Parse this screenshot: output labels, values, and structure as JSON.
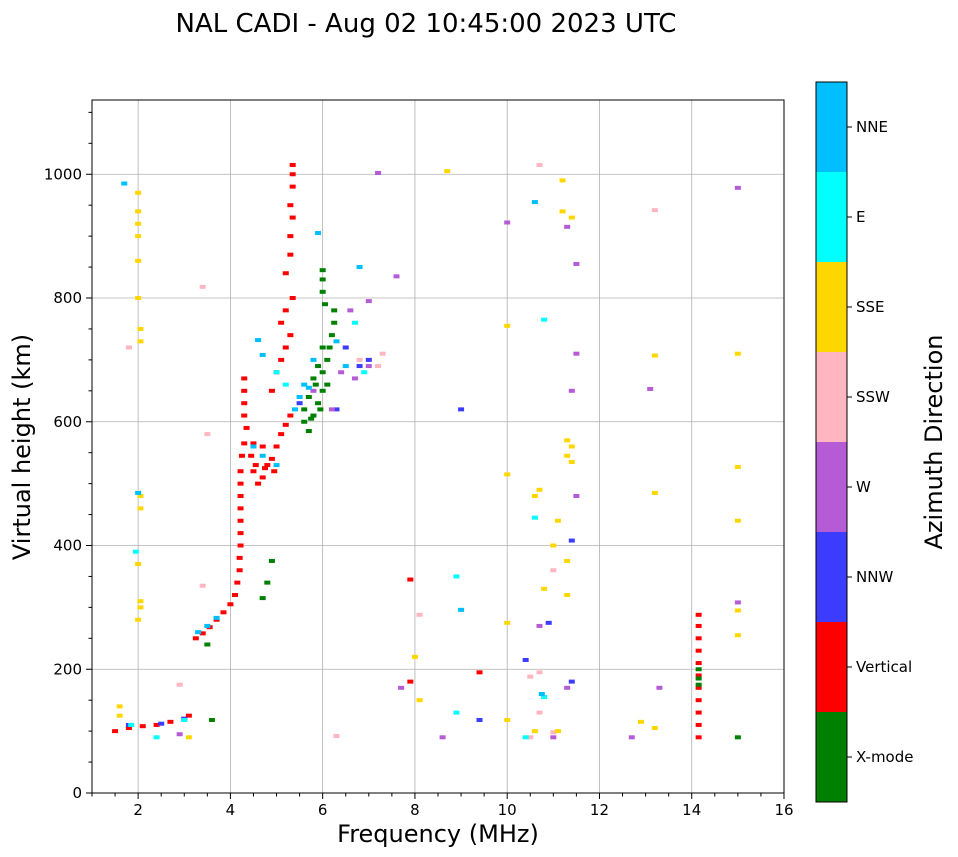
{
  "chart_data": {
    "type": "scatter",
    "title": "NAL CADI - Aug 02 10:45:00 2023 UTC",
    "xlabel": "Frequency (MHz)",
    "ylabel": "Virtual height (km)",
    "xlim": [
      1,
      16
    ],
    "ylim": [
      0,
      1120
    ],
    "xticks": [
      "2",
      "4",
      "6",
      "8",
      "10",
      "12",
      "14",
      "16"
    ],
    "yticks": [
      "0",
      "200",
      "400",
      "600",
      "800",
      "1000"
    ],
    "grid": true,
    "colorbar": {
      "label": "Azimuth Direction",
      "categories": [
        {
          "name": "X-mode",
          "color": "#008000"
        },
        {
          "name": "Vertical",
          "color": "#ff0000"
        },
        {
          "name": "NNW",
          "color": "#3c3cff"
        },
        {
          "name": "W",
          "color": "#b55bd6"
        },
        {
          "name": "SSW",
          "color": "#ffb6c1"
        },
        {
          "name": "SSE",
          "color": "#ffd700"
        },
        {
          "name": "E",
          "color": "#00ffff"
        },
        {
          "name": "NNE",
          "color": "#00bfff"
        }
      ]
    },
    "series": [
      {
        "name": "Vertical",
        "color": "#ff0000",
        "points": [
          [
            1.5,
            100
          ],
          [
            1.8,
            105
          ],
          [
            2.1,
            108
          ],
          [
            2.4,
            110
          ],
          [
            2.7,
            115
          ],
          [
            3.0,
            120
          ],
          [
            3.1,
            125
          ],
          [
            3.25,
            250
          ],
          [
            3.4,
            258
          ],
          [
            3.55,
            268
          ],
          [
            3.7,
            280
          ],
          [
            3.85,
            292
          ],
          [
            4.0,
            305
          ],
          [
            4.1,
            320
          ],
          [
            4.15,
            340
          ],
          [
            4.2,
            360
          ],
          [
            4.2,
            380
          ],
          [
            4.22,
            400
          ],
          [
            4.22,
            420
          ],
          [
            4.22,
            440
          ],
          [
            4.22,
            460
          ],
          [
            4.22,
            480
          ],
          [
            4.22,
            500
          ],
          [
            4.22,
            520
          ],
          [
            4.25,
            545
          ],
          [
            4.3,
            565
          ],
          [
            4.35,
            590
          ],
          [
            4.3,
            610
          ],
          [
            4.3,
            630
          ],
          [
            4.3,
            650
          ],
          [
            4.3,
            670
          ],
          [
            4.5,
            520
          ],
          [
            4.6,
            500
          ],
          [
            4.7,
            510
          ],
          [
            4.8,
            530
          ],
          [
            4.9,
            540
          ],
          [
            5.0,
            560
          ],
          [
            5.1,
            580
          ],
          [
            5.2,
            595
          ],
          [
            5.3,
            610
          ],
          [
            4.45,
            545
          ],
          [
            4.55,
            530
          ],
          [
            4.75,
            525
          ],
          [
            4.95,
            520
          ],
          [
            4.5,
            565
          ],
          [
            4.7,
            560
          ],
          [
            4.9,
            650
          ],
          [
            5.0,
            680
          ],
          [
            5.1,
            700
          ],
          [
            5.2,
            720
          ],
          [
            5.3,
            740
          ],
          [
            5.1,
            760
          ],
          [
            5.2,
            780
          ],
          [
            5.35,
            800
          ],
          [
            5.2,
            840
          ],
          [
            5.3,
            870
          ],
          [
            5.3,
            900
          ],
          [
            5.35,
            930
          ],
          [
            5.3,
            950
          ],
          [
            5.35,
            980
          ],
          [
            5.35,
            1000
          ],
          [
            5.35,
            1015
          ],
          [
            7.9,
            345
          ],
          [
            7.9,
            180
          ],
          [
            9.4,
            195
          ],
          [
            14.15,
            90
          ],
          [
            14.15,
            110
          ],
          [
            14.15,
            130
          ],
          [
            14.15,
            150
          ],
          [
            14.15,
            170
          ],
          [
            14.15,
            190
          ],
          [
            14.15,
            210
          ],
          [
            14.15,
            230
          ],
          [
            14.15,
            250
          ],
          [
            14.15,
            270
          ],
          [
            14.15,
            288
          ]
        ]
      },
      {
        "name": "X-mode",
        "color": "#008000",
        "points": [
          [
            5.6,
            600
          ],
          [
            5.7,
            585
          ],
          [
            5.8,
            610
          ],
          [
            5.9,
            630
          ],
          [
            6.0,
            650
          ],
          [
            5.7,
            640
          ],
          [
            5.85,
            660
          ],
          [
            6.0,
            680
          ],
          [
            6.1,
            700
          ],
          [
            6.15,
            720
          ],
          [
            6.2,
            740
          ],
          [
            6.25,
            760
          ],
          [
            6.25,
            780
          ],
          [
            6.0,
            720
          ],
          [
            5.9,
            690
          ],
          [
            6.05,
            790
          ],
          [
            6.0,
            810
          ],
          [
            6.0,
            830
          ],
          [
            6.0,
            845
          ],
          [
            5.6,
            620
          ],
          [
            5.75,
            605
          ],
          [
            5.95,
            620
          ],
          [
            6.1,
            660
          ],
          [
            5.8,
            670
          ],
          [
            4.9,
            375
          ],
          [
            4.7,
            315
          ],
          [
            4.8,
            340
          ],
          [
            3.5,
            240
          ],
          [
            3.6,
            118
          ],
          [
            14.15,
            185
          ],
          [
            14.15,
            200
          ],
          [
            14.15,
            175
          ],
          [
            15.0,
            90
          ]
        ]
      },
      {
        "name": "NNW",
        "color": "#3c3cff",
        "points": [
          [
            1.8,
            110
          ],
          [
            2.5,
            112
          ],
          [
            3.0,
            120
          ],
          [
            5.5,
            630
          ],
          [
            6.3,
            620
          ],
          [
            6.5,
            720
          ],
          [
            6.8,
            690
          ],
          [
            9.0,
            620
          ],
          [
            9.4,
            118
          ],
          [
            10.4,
            215
          ],
          [
            10.9,
            275
          ],
          [
            11.4,
            408
          ],
          [
            11.4,
            180
          ],
          [
            7.0,
            700
          ]
        ]
      },
      {
        "name": "W",
        "color": "#b55bd6",
        "points": [
          [
            2.9,
            95
          ],
          [
            5.8,
            650
          ],
          [
            6.2,
            620
          ],
          [
            6.4,
            680
          ],
          [
            6.7,
            670
          ],
          [
            7.0,
            690
          ],
          [
            6.6,
            780
          ],
          [
            7.0,
            795
          ],
          [
            7.2,
            1002
          ],
          [
            7.6,
            835
          ],
          [
            10.0,
            922
          ],
          [
            11.3,
            915
          ],
          [
            11.5,
            855
          ],
          [
            11.5,
            710
          ],
          [
            11.4,
            650
          ],
          [
            11.5,
            480
          ],
          [
            10.7,
            270
          ],
          [
            11.3,
            170
          ],
          [
            11.0,
            90
          ],
          [
            12.7,
            90
          ],
          [
            13.1,
            653
          ],
          [
            13.3,
            170
          ],
          [
            15.0,
            978
          ],
          [
            15.0,
            308
          ],
          [
            8.6,
            90
          ],
          [
            7.7,
            170
          ]
        ]
      },
      {
        "name": "SSW",
        "color": "#ffb6c1",
        "points": [
          [
            1.8,
            720
          ],
          [
            3.4,
            818
          ],
          [
            3.5,
            580
          ],
          [
            3.4,
            335
          ],
          [
            2.9,
            175
          ],
          [
            6.3,
            92
          ],
          [
            7.2,
            690
          ],
          [
            7.3,
            710
          ],
          [
            6.8,
            700
          ],
          [
            8.1,
            288
          ],
          [
            10.5,
            188
          ],
          [
            10.7,
            195
          ],
          [
            11.0,
            360
          ],
          [
            10.5,
            90
          ],
          [
            10.7,
            130
          ],
          [
            10.7,
            1015
          ],
          [
            13.2,
            942
          ],
          [
            11.0,
            98
          ]
        ]
      },
      {
        "name": "SSE",
        "color": "#ffd700",
        "points": [
          [
            2.0,
            970
          ],
          [
            2.0,
            940
          ],
          [
            2.0,
            920
          ],
          [
            2.0,
            900
          ],
          [
            2.0,
            860
          ],
          [
            2.0,
            800
          ],
          [
            2.05,
            750
          ],
          [
            2.05,
            730
          ],
          [
            2.05,
            480
          ],
          [
            2.05,
            460
          ],
          [
            2.0,
            370
          ],
          [
            2.05,
            310
          ],
          [
            2.05,
            300
          ],
          [
            2.0,
            280
          ],
          [
            1.6,
            140
          ],
          [
            1.6,
            125
          ],
          [
            3.1,
            90
          ],
          [
            8.7,
            1005
          ],
          [
            8.0,
            220
          ],
          [
            8.1,
            150
          ],
          [
            10.0,
            755
          ],
          [
            10.0,
            515
          ],
          [
            10.0,
            275
          ],
          [
            10.0,
            118
          ],
          [
            10.7,
            490
          ],
          [
            10.6,
            480
          ],
          [
            10.8,
            330
          ],
          [
            11.2,
            990
          ],
          [
            11.2,
            940
          ],
          [
            11.4,
            930
          ],
          [
            11.3,
            570
          ],
          [
            11.4,
            560
          ],
          [
            11.3,
            545
          ],
          [
            11.4,
            535
          ],
          [
            11.1,
            440
          ],
          [
            11.0,
            400
          ],
          [
            11.3,
            375
          ],
          [
            11.3,
            320
          ],
          [
            10.6,
            100
          ],
          [
            11.1,
            100
          ],
          [
            12.9,
            115
          ],
          [
            13.2,
            105
          ],
          [
            13.2,
            707
          ],
          [
            13.2,
            485
          ],
          [
            15.0,
            710
          ],
          [
            15.0,
            527
          ],
          [
            15.0,
            440
          ],
          [
            15.0,
            295
          ],
          [
            15.0,
            255
          ]
        ]
      },
      {
        "name": "E",
        "color": "#00ffff",
        "points": [
          [
            1.95,
            390
          ],
          [
            1.85,
            110
          ],
          [
            2.4,
            90
          ],
          [
            5.0,
            680
          ],
          [
            5.2,
            660
          ],
          [
            6.7,
            760
          ],
          [
            6.9,
            680
          ],
          [
            8.9,
            130
          ],
          [
            8.9,
            350
          ],
          [
            10.8,
            765
          ],
          [
            10.6,
            445
          ],
          [
            10.4,
            90
          ],
          [
            10.8,
            155
          ],
          [
            3.0,
            118
          ]
        ]
      },
      {
        "name": "NNE",
        "color": "#00bfff",
        "points": [
          [
            1.7,
            985
          ],
          [
            2.0,
            485
          ],
          [
            3.3,
            260
          ],
          [
            3.5,
            270
          ],
          [
            3.7,
            283
          ],
          [
            4.5,
            560
          ],
          [
            4.7,
            545
          ],
          [
            5.0,
            530
          ],
          [
            4.6,
            732
          ],
          [
            4.7,
            708
          ],
          [
            5.5,
            640
          ],
          [
            5.6,
            660
          ],
          [
            5.7,
            655
          ],
          [
            5.8,
            700
          ],
          [
            5.9,
            905
          ],
          [
            6.3,
            730
          ],
          [
            6.5,
            690
          ],
          [
            6.8,
            850
          ],
          [
            9.0,
            296
          ],
          [
            10.6,
            955
          ],
          [
            10.75,
            160
          ],
          [
            5.4,
            620
          ]
        ]
      }
    ]
  }
}
